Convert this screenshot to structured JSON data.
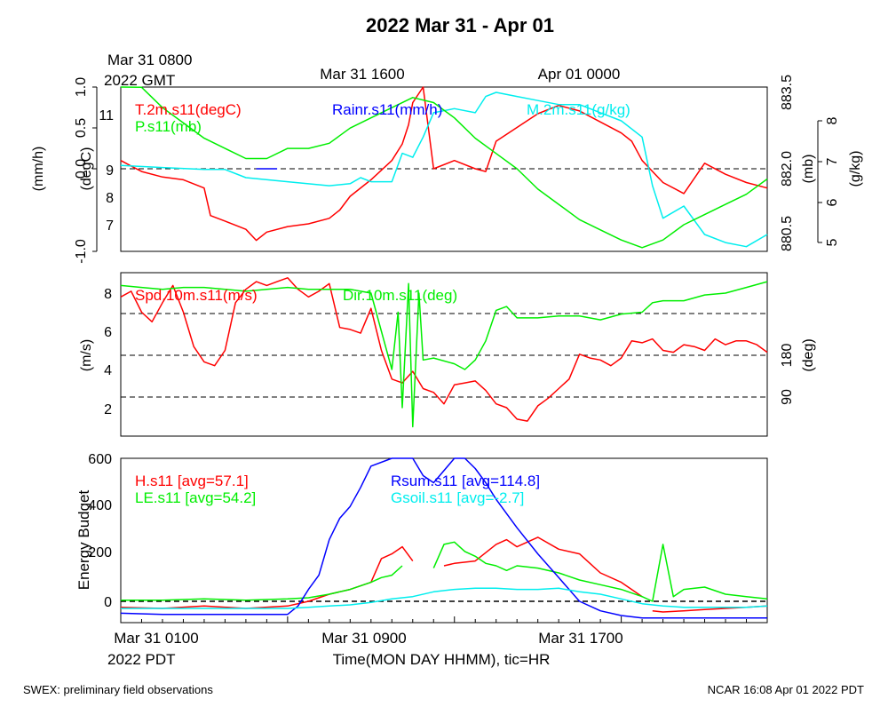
{
  "title": "2022 Mar 31 - Apr 01",
  "top_time_labels": {
    "gmt_first_line1": "Mar 31 0800",
    "gmt_first_line2": "2022 GMT",
    "gmt_mid": "Mar 31 1600",
    "gmt_last": "Apr 01 0000"
  },
  "bottom_time_labels": {
    "pdt_first": "Mar 31 0100",
    "pdt_year": "2022 PDT",
    "pdt_mid": "Mar 31 0900",
    "pdt_last": "Mar 31 1700",
    "xlabel": "Time(MON DAY HHMM), tic=HR"
  },
  "footer": {
    "left": "SWEX: preliminary field observations",
    "right": "NCAR 16:08 Apr 01 2022 PDT"
  },
  "colors": {
    "red": "#ff0000",
    "green": "#00ee00",
    "blue": "#0000ff",
    "cyan": "#00eeee",
    "black": "#000000"
  },
  "chart_data": [
    {
      "type": "line",
      "panel": "top",
      "x_range_hours_pdt": [
        0,
        31
      ],
      "axes": {
        "rain": {
          "label": "(mm/h)",
          "ylim": [
            -1.0,
            1.0
          ],
          "ticks": [
            "1.0",
            "0.5",
            "0.0",
            "-1.0"
          ]
        },
        "temp": {
          "label": "(degC)",
          "ticks": [
            "11",
            "9",
            "8",
            "7"
          ]
        },
        "pressure": {
          "label": "(mb)",
          "ticks": [
            "883.5",
            "882.0",
            "880.5"
          ]
        },
        "mixing": {
          "label": "(g/kg)",
          "ticks": [
            "8",
            "7",
            "6",
            "5"
          ]
        }
      },
      "reference_line": "dashed at 0.0",
      "series": [
        {
          "name": "T.2m.s11(degC)",
          "color": "red",
          "x": [
            0,
            0.5,
            1,
            2,
            3,
            4,
            4.3,
            5,
            6,
            6.5,
            7,
            8,
            9,
            10,
            10.5,
            11,
            12,
            13,
            13.5,
            13.8,
            14,
            14.5,
            15,
            16,
            17,
            17.5,
            18,
            19,
            20,
            21,
            22,
            23,
            24,
            24.5,
            25,
            26,
            27,
            28,
            29,
            30,
            31
          ],
          "values": [
            9.3,
            9.1,
            8.9,
            8.7,
            8.6,
            8.3,
            7.3,
            7.1,
            6.8,
            6.4,
            6.7,
            6.9,
            7.0,
            7.2,
            7.5,
            8.0,
            8.6,
            9.3,
            9.9,
            10.6,
            11.4,
            12.4,
            9.0,
            9.3,
            9.0,
            8.9,
            10.0,
            10.5,
            11.0,
            11.3,
            11.1,
            10.7,
            10.3,
            10.0,
            9.3,
            8.5,
            8.1,
            9.2,
            8.8,
            8.5,
            8.3
          ]
        },
        {
          "name": "Rainr.s11(mm/h)",
          "color": "blue",
          "x": [
            6.5,
            7.5
          ],
          "values": [
            0.0,
            0.0
          ]
        },
        {
          "name": "M.2m.s11(g/kg)",
          "color": "cyan",
          "x": [
            0,
            2,
            4,
            5,
            6,
            8,
            10,
            11,
            11.5,
            12,
            13,
            13.5,
            14,
            14.5,
            15,
            16,
            17,
            17.5,
            18,
            19,
            20,
            21,
            22,
            23,
            24,
            25,
            25.5,
            26,
            27,
            28,
            29,
            30,
            31
          ],
          "values": [
            6.9,
            6.85,
            6.8,
            6.8,
            6.6,
            6.5,
            6.4,
            6.45,
            6.6,
            6.5,
            6.5,
            7.2,
            7.1,
            7.6,
            8.2,
            8.3,
            8.2,
            8.6,
            8.7,
            8.6,
            8.5,
            8.4,
            8.4,
            8.2,
            8.0,
            7.6,
            6.4,
            5.6,
            5.9,
            5.2,
            5.0,
            4.9,
            5.2
          ]
        },
        {
          "name": "P.s11(mb)",
          "color": "green",
          "x": [
            0,
            1,
            2,
            3,
            4,
            5,
            6,
            7,
            8,
            9,
            10,
            11,
            12,
            13,
            14,
            15,
            16,
            17,
            18,
            19,
            20,
            21,
            22,
            23,
            24,
            25,
            26,
            27,
            28,
            29,
            30,
            31
          ],
          "values": [
            883.9,
            883.6,
            883.2,
            882.9,
            882.6,
            882.4,
            882.2,
            882.2,
            882.4,
            882.4,
            882.5,
            882.8,
            883.0,
            883.2,
            883.4,
            883.3,
            883.0,
            882.6,
            882.3,
            882.0,
            881.6,
            881.3,
            881.0,
            880.8,
            880.6,
            880.45,
            880.6,
            880.9,
            881.1,
            881.3,
            881.5,
            881.8
          ]
        }
      ]
    },
    {
      "type": "line",
      "panel": "middle",
      "x_range_hours_pdt": [
        0,
        31
      ],
      "axes": {
        "speed": {
          "label": "(m/s)",
          "ticks": [
            "8",
            "6",
            "4",
            "2"
          ]
        },
        "direction": {
          "label": "(deg)",
          "ticks": [
            "180",
            "90"
          ]
        }
      },
      "reference_lines": "dashed at 7.0, 4.8, 2.6 m/s",
      "series": [
        {
          "name": "Spd.10m.s11(m/s)",
          "color": "red",
          "x": [
            0,
            0.5,
            1,
            1.5,
            2,
            2.5,
            3,
            3.5,
            4,
            4.5,
            5,
            5.5,
            6,
            6.5,
            7,
            7.5,
            8,
            8.5,
            9,
            9.5,
            10,
            10.5,
            11,
            11.5,
            12,
            12.5,
            13,
            13.5,
            14,
            14.5,
            15,
            15.5,
            16,
            16.5,
            17,
            17.5,
            18,
            18.5,
            19,
            19.5,
            20,
            20.5,
            21,
            21.5,
            22,
            22.5,
            23,
            23.5,
            24,
            24.5,
            25,
            25.5,
            26,
            26.5,
            27,
            27.5,
            28,
            28.5,
            29,
            29.5,
            30,
            30.5,
            31
          ],
          "values": [
            7.8,
            8.1,
            7.0,
            6.5,
            7.5,
            8.4,
            7.0,
            5.2,
            4.4,
            4.2,
            5.0,
            7.5,
            8.2,
            8.6,
            8.4,
            8.6,
            8.8,
            8.2,
            7.8,
            8.1,
            8.5,
            6.2,
            6.1,
            5.9,
            7.2,
            5.0,
            3.5,
            3.3,
            3.9,
            3.0,
            2.8,
            2.2,
            3.2,
            3.3,
            3.4,
            2.9,
            2.2,
            2.0,
            1.4,
            1.3,
            2.1,
            2.5,
            3.0,
            3.5,
            4.8,
            4.6,
            4.5,
            4.2,
            4.6,
            5.5,
            5.4,
            5.6,
            5.0,
            4.9,
            5.3,
            5.2,
            5.0,
            5.6,
            5.3,
            5.5,
            5.5,
            5.3,
            4.9
          ]
        },
        {
          "name": "Dir.10m.s11(deg)",
          "color": "green",
          "x": [
            0,
            1,
            2,
            3,
            4,
            5,
            6,
            7,
            8,
            9,
            10,
            11,
            12,
            12.5,
            13,
            13.3,
            13.5,
            13.8,
            14,
            14.3,
            14.5,
            15,
            16,
            16.5,
            17,
            17.5,
            18,
            18.5,
            19,
            20,
            21,
            22,
            23,
            24,
            25,
            25.5,
            26,
            27,
            28,
            29,
            30,
            31
          ],
          "values": [
            8.4,
            8.3,
            8.2,
            8.3,
            8.3,
            8.2,
            8.1,
            8.2,
            8.3,
            8.2,
            8.2,
            8.2,
            8.0,
            6.0,
            4.0,
            7.0,
            2.0,
            8.5,
            1.0,
            8.0,
            4.5,
            4.6,
            4.3,
            4.0,
            4.5,
            5.5,
            7.1,
            7.3,
            6.7,
            6.7,
            6.8,
            6.8,
            6.6,
            6.9,
            7.0,
            7.5,
            7.6,
            7.6,
            7.9,
            8.0,
            8.3,
            8.6
          ]
        }
      ]
    },
    {
      "type": "line",
      "panel": "bottom",
      "x_range_hours_pdt": [
        0,
        31
      ],
      "axes": {
        "energy": {
          "label": "Energy Budget",
          "ylim": [
            -80,
            600
          ],
          "ticks": [
            "600",
            "400",
            "200",
            "0"
          ]
        }
      },
      "reference_line": "dashed at 0",
      "series": [
        {
          "name": "H.s11 [avg=57.1]",
          "color": "red",
          "x": [
            0,
            2,
            4,
            6,
            8,
            9,
            10,
            11,
            12,
            12.5,
            13,
            13.5,
            14
          ],
          "values": [
            -25,
            -30,
            -20,
            -30,
            -20,
            0,
            30,
            50,
            80,
            180,
            200,
            230,
            170
          ]
        },
        {
          "name": "H.s11 [avg=57.1]",
          "color": "red",
          "x": [
            15.5,
            16,
            17,
            18,
            18.5,
            19,
            20,
            21,
            22,
            23,
            24,
            25
          ],
          "values": [
            150,
            160,
            170,
            240,
            260,
            230,
            270,
            220,
            200,
            120,
            80,
            20
          ]
        },
        {
          "name": "H.s11 [avg=57.1]",
          "color": "red",
          "x": [
            25.5,
            26,
            27,
            28,
            29,
            30,
            31
          ],
          "values": [
            -40,
            -45,
            -40,
            -35,
            -30,
            -25,
            -20
          ]
        },
        {
          "name": "LE.s11 [avg=54.2]",
          "color": "green",
          "x": [
            0,
            2,
            4,
            6,
            8,
            9,
            10,
            11,
            12,
            12.5,
            13,
            13.5
          ],
          "values": [
            5,
            5,
            10,
            5,
            10,
            15,
            30,
            50,
            80,
            100,
            110,
            150
          ]
        },
        {
          "name": "LE.s11 [avg=54.2]",
          "color": "green",
          "x": [
            15,
            15.5,
            16,
            16.5,
            17,
            17.5,
            18,
            18.5,
            19,
            20,
            21,
            22,
            23,
            24,
            25,
            25.5,
            26,
            26.5,
            27,
            28,
            29,
            30,
            31
          ],
          "values": [
            140,
            240,
            250,
            210,
            190,
            160,
            150,
            130,
            150,
            140,
            120,
            90,
            70,
            50,
            20,
            0,
            240,
            20,
            50,
            60,
            30,
            20,
            10
          ]
        },
        {
          "name": "Rsum.s11 [avg=114.8]",
          "color": "blue",
          "x": [
            0,
            2,
            4,
            6,
            8,
            8.5,
            9,
            9.5,
            10,
            10.5,
            11,
            11.5,
            12,
            13,
            14,
            14.5,
            15,
            16,
            16.5,
            17,
            17.5,
            18,
            19,
            20,
            21,
            22,
            23,
            24,
            25,
            26,
            27,
            28,
            29,
            30,
            31
          ],
          "values": [
            -50,
            -55,
            -55,
            -55,
            -55,
            -20,
            50,
            110,
            260,
            350,
            400,
            480,
            570,
            620,
            610,
            530,
            500,
            620,
            610,
            560,
            500,
            430,
            310,
            200,
            100,
            0,
            -40,
            -60,
            -70,
            -70,
            -70,
            -70,
            -70,
            -70,
            -70
          ]
        },
        {
          "name": "Gsoil.s11 [avg=-2.7]",
          "color": "cyan",
          "x": [
            0,
            2,
            4,
            6,
            8,
            9,
            10,
            11,
            12,
            13,
            14,
            15,
            16,
            17,
            18,
            19,
            20,
            21,
            22,
            23,
            24,
            25,
            26,
            27,
            28,
            29,
            30,
            31
          ],
          "values": [
            -30,
            -30,
            -30,
            -30,
            -30,
            -25,
            -20,
            -15,
            -5,
            10,
            20,
            40,
            50,
            55,
            55,
            50,
            50,
            55,
            40,
            30,
            10,
            -10,
            -20,
            -25,
            -25,
            -25,
            -25,
            -20
          ]
        }
      ]
    }
  ]
}
